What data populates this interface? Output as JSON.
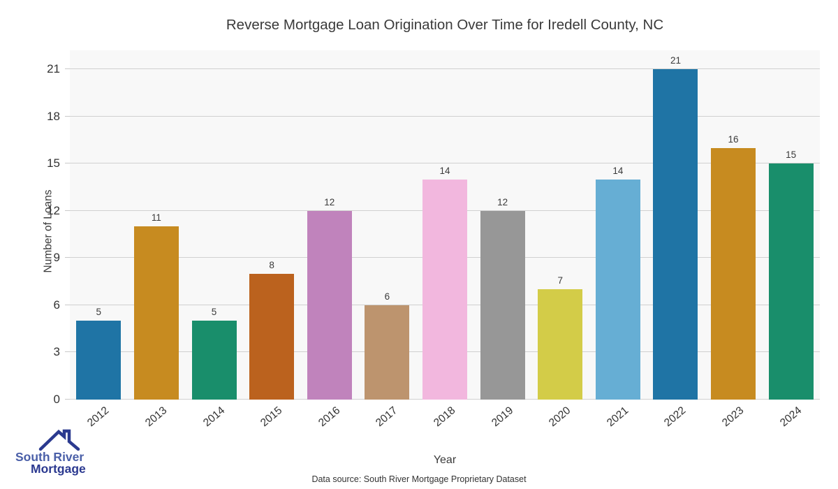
{
  "title": "Reverse Mortgage Loan Origination Over Time for Iredell County, NC",
  "chart_data": {
    "type": "bar",
    "categories": [
      "2012",
      "2013",
      "2014",
      "2015",
      "2016",
      "2017",
      "2018",
      "2019",
      "2020",
      "2021",
      "2022",
      "2023",
      "2024"
    ],
    "values": [
      5,
      11,
      5,
      8,
      12,
      6,
      14,
      12,
      7,
      14,
      21,
      16,
      15
    ],
    "bar_colors": [
      "#1f74a5",
      "#c78b20",
      "#198e6b",
      "#bb621e",
      "#c083bc",
      "#bd946e",
      "#f2b7de",
      "#979797",
      "#d3cc48",
      "#66aed4",
      "#1f74a5",
      "#c78b20",
      "#198e6b"
    ],
    "title": "Reverse Mortgage Loan Origination Over Time for Iredell County, NC",
    "xlabel": "Year",
    "ylabel": "Number of Loans",
    "yticks": [
      0,
      3,
      6,
      9,
      12,
      15,
      18,
      21
    ],
    "ylim": [
      0,
      22.2
    ],
    "grid": "horizontal",
    "legend": "none",
    "plot_bg": "#f8f8f8",
    "grid_color": "#d0d0d0",
    "value_labels": true,
    "xtick_rotation": 40
  },
  "footer": {
    "data_source": "Data source: South River Mortgage Proprietary Dataset"
  },
  "logo": {
    "line1": "South River",
    "line2": "Mortgage",
    "color1": "#4a5fa8",
    "color2": "#2b3990",
    "icon": "house-roof-icon",
    "icon_color": "#2b3a8f"
  }
}
